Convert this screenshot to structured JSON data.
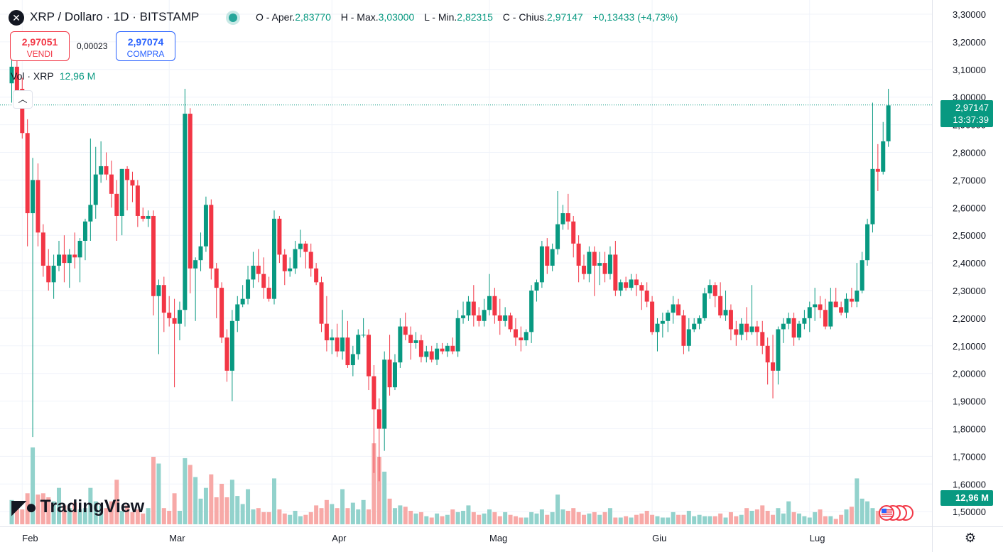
{
  "header": {
    "symbol_icon": "x-icon",
    "title": "XRP / Dollaro · 1D · BITSTAMP",
    "ohlc": {
      "open_label": "O - Aper.",
      "open": "2,83770",
      "high_label": "H - Max.",
      "high": "3,03000",
      "low_label": "L - Min.",
      "low": "2,82315",
      "close_label": "C - Chius.",
      "close": "2,97147",
      "change": "+0,13433 (+4,73%)"
    }
  },
  "trade": {
    "sell_price": "2,97051",
    "sell_label": "VENDI",
    "spread": "0,00023",
    "buy_price": "2,97074",
    "buy_label": "COMPRA"
  },
  "volume_legend": {
    "label": "Vol · XRP",
    "value": "12,96 M"
  },
  "price_tag": {
    "price": "2,97147",
    "countdown": "13:37:39"
  },
  "volume_tag": "12,96 M",
  "logo": {
    "text": "TradingView"
  },
  "colors": {
    "up": "#089981",
    "down": "#f23645",
    "up_vol": "#92d2cc",
    "down_vol": "#f7a9a7",
    "grid": "#f0f3fa"
  },
  "chart_data": {
    "type": "candlestick",
    "ylim": [
      1.45,
      3.32
    ],
    "y_ticks": [
      "3,30000",
      "3,20000",
      "3,10000",
      "3,00000",
      "2,90000",
      "2,80000",
      "2,70000",
      "2,60000",
      "2,50000",
      "2,40000",
      "2,30000",
      "2,20000",
      "2,10000",
      "2,00000",
      "1,90000",
      "1,80000",
      "1,70000",
      "1,60000",
      "1,50000"
    ],
    "x_tick_labels": [
      {
        "label": "Feb",
        "index": 2
      },
      {
        "label": "Mar",
        "index": 30
      },
      {
        "label": "Apr",
        "index": 61
      },
      {
        "label": "Mag",
        "index": 91
      },
      {
        "label": "Giu",
        "index": 122
      },
      {
        "label": "Lug",
        "index": 152
      }
    ],
    "current_price": 2.97147,
    "candles": [
      [
        3.05,
        3.14,
        2.98,
        3.11
      ],
      [
        3.11,
        3.15,
        2.98,
        3.02
      ],
      [
        3.03,
        3.07,
        2.85,
        2.87
      ],
      [
        2.87,
        2.92,
        2.46,
        2.58
      ],
      [
        2.58,
        2.78,
        1.77,
        2.7
      ],
      [
        2.7,
        2.76,
        2.46,
        2.51
      ],
      [
        2.51,
        2.54,
        2.35,
        2.39
      ],
      [
        2.39,
        2.45,
        2.3,
        2.33
      ],
      [
        2.33,
        2.43,
        2.27,
        2.39
      ],
      [
        2.39,
        2.48,
        2.37,
        2.43
      ],
      [
        2.43,
        2.5,
        2.33,
        2.4
      ],
      [
        2.4,
        2.45,
        2.31,
        2.43
      ],
      [
        2.43,
        2.51,
        2.38,
        2.42
      ],
      [
        2.42,
        2.49,
        2.33,
        2.48
      ],
      [
        2.48,
        2.56,
        2.41,
        2.55
      ],
      [
        2.55,
        2.85,
        2.48,
        2.61
      ],
      [
        2.61,
        2.82,
        2.56,
        2.72
      ],
      [
        2.72,
        2.84,
        2.69,
        2.75
      ],
      [
        2.75,
        2.8,
        2.7,
        2.72
      ],
      [
        2.72,
        2.77,
        2.6,
        2.65
      ],
      [
        2.65,
        2.7,
        2.48,
        2.57
      ],
      [
        2.57,
        2.74,
        2.5,
        2.74
      ],
      [
        2.74,
        2.75,
        2.59,
        2.7
      ],
      [
        2.7,
        2.73,
        2.62,
        2.68
      ],
      [
        2.68,
        2.7,
        2.53,
        2.57
      ],
      [
        2.57,
        2.6,
        2.55,
        2.56
      ],
      [
        2.56,
        2.59,
        2.53,
        2.57
      ],
      [
        2.57,
        2.59,
        2.21,
        2.28
      ],
      [
        2.28,
        2.34,
        2.07,
        2.32
      ],
      [
        2.32,
        2.35,
        2.15,
        2.22
      ],
      [
        2.22,
        2.28,
        2.17,
        2.2
      ],
      [
        2.2,
        2.27,
        1.95,
        2.18
      ],
      [
        2.18,
        2.26,
        2.12,
        2.23
      ],
      [
        2.23,
        3.03,
        2.17,
        2.94
      ],
      [
        2.94,
        2.96,
        2.29,
        2.38
      ],
      [
        2.38,
        2.42,
        2.19,
        2.41
      ],
      [
        2.41,
        2.51,
        2.37,
        2.46
      ],
      [
        2.46,
        2.64,
        2.44,
        2.61
      ],
      [
        2.61,
        2.63,
        2.34,
        2.38
      ],
      [
        2.38,
        2.4,
        2.2,
        2.31
      ],
      [
        2.31,
        2.33,
        2.11,
        2.13
      ],
      [
        2.13,
        2.16,
        1.97,
        2.01
      ],
      [
        2.01,
        2.23,
        1.9,
        2.19
      ],
      [
        2.19,
        2.28,
        2.15,
        2.25
      ],
      [
        2.25,
        2.32,
        2.24,
        2.27
      ],
      [
        2.27,
        2.39,
        2.25,
        2.34
      ],
      [
        2.34,
        2.44,
        2.31,
        2.39
      ],
      [
        2.39,
        2.45,
        2.33,
        2.36
      ],
      [
        2.36,
        2.42,
        2.27,
        2.31
      ],
      [
        2.31,
        2.35,
        2.26,
        2.27
      ],
      [
        2.27,
        2.59,
        2.25,
        2.56
      ],
      [
        2.56,
        2.57,
        2.4,
        2.43
      ],
      [
        2.43,
        2.45,
        2.32,
        2.37
      ],
      [
        2.37,
        2.42,
        2.35,
        2.38
      ],
      [
        2.38,
        2.48,
        2.36,
        2.45
      ],
      [
        2.45,
        2.52,
        2.42,
        2.47
      ],
      [
        2.47,
        2.48,
        2.38,
        2.44
      ],
      [
        2.44,
        2.47,
        2.35,
        2.38
      ],
      [
        2.38,
        2.4,
        2.32,
        2.33
      ],
      [
        2.33,
        2.35,
        2.15,
        2.18
      ],
      [
        2.18,
        2.28,
        2.08,
        2.12
      ],
      [
        2.12,
        2.16,
        2.07,
        2.13
      ],
      [
        2.13,
        2.18,
        2.06,
        2.08
      ],
      [
        2.08,
        2.23,
        2.05,
        2.13
      ],
      [
        2.13,
        2.19,
        2.02,
        2.03
      ],
      [
        2.03,
        2.1,
        1.99,
        2.07
      ],
      [
        2.07,
        2.16,
        2.05,
        2.14
      ],
      [
        2.14,
        2.2,
        2.13,
        2.14
      ],
      [
        2.14,
        2.16,
        1.94,
        1.99
      ],
      [
        1.99,
        2.03,
        1.64,
        1.87
      ],
      [
        1.87,
        1.91,
        1.61,
        1.8
      ],
      [
        1.8,
        2.08,
        1.72,
        2.05
      ],
      [
        2.05,
        2.14,
        1.92,
        1.95
      ],
      [
        1.95,
        2.07,
        1.94,
        2.04
      ],
      [
        2.04,
        2.2,
        2.02,
        2.17
      ],
      [
        2.17,
        2.22,
        2.12,
        2.14
      ],
      [
        2.14,
        2.17,
        2.05,
        2.11
      ],
      [
        2.11,
        2.15,
        2.09,
        2.12
      ],
      [
        2.12,
        2.14,
        2.04,
        2.06
      ],
      [
        2.06,
        2.1,
        2.04,
        2.08
      ],
      [
        2.08,
        2.1,
        2.04,
        2.05
      ],
      [
        2.05,
        2.11,
        2.03,
        2.09
      ],
      [
        2.09,
        2.11,
        2.07,
        2.08
      ],
      [
        2.08,
        2.11,
        2.06,
        2.1
      ],
      [
        2.1,
        2.13,
        2.07,
        2.08
      ],
      [
        2.08,
        2.23,
        2.06,
        2.2
      ],
      [
        2.2,
        2.26,
        2.18,
        2.21
      ],
      [
        2.21,
        2.28,
        2.19,
        2.26
      ],
      [
        2.26,
        2.32,
        2.17,
        2.21
      ],
      [
        2.21,
        2.24,
        2.17,
        2.19
      ],
      [
        2.19,
        2.27,
        2.17,
        2.23
      ],
      [
        2.23,
        2.36,
        2.21,
        2.28
      ],
      [
        2.28,
        2.31,
        2.18,
        2.21
      ],
      [
        2.21,
        2.27,
        2.14,
        2.19
      ],
      [
        2.19,
        2.24,
        2.17,
        2.21
      ],
      [
        2.21,
        2.22,
        2.15,
        2.16
      ],
      [
        2.16,
        2.2,
        2.1,
        2.13
      ],
      [
        2.13,
        2.17,
        2.08,
        2.12
      ],
      [
        2.12,
        2.16,
        2.1,
        2.15
      ],
      [
        2.15,
        2.32,
        2.11,
        2.3
      ],
      [
        2.3,
        2.34,
        2.26,
        2.33
      ],
      [
        2.33,
        2.48,
        2.31,
        2.46
      ],
      [
        2.46,
        2.49,
        2.36,
        2.39
      ],
      [
        2.39,
        2.47,
        2.37,
        2.45
      ],
      [
        2.45,
        2.66,
        2.43,
        2.54
      ],
      [
        2.54,
        2.61,
        2.52,
        2.58
      ],
      [
        2.58,
        2.65,
        2.52,
        2.55
      ],
      [
        2.55,
        2.57,
        2.42,
        2.47
      ],
      [
        2.47,
        2.5,
        2.33,
        2.39
      ],
      [
        2.39,
        2.43,
        2.34,
        2.36
      ],
      [
        2.36,
        2.46,
        2.33,
        2.44
      ],
      [
        2.44,
        2.46,
        2.28,
        2.39
      ],
      [
        2.39,
        2.44,
        2.32,
        2.4
      ],
      [
        2.4,
        2.44,
        2.33,
        2.36
      ],
      [
        2.36,
        2.46,
        2.34,
        2.43
      ],
      [
        2.43,
        2.48,
        2.28,
        2.3
      ],
      [
        2.3,
        2.34,
        2.28,
        2.33
      ],
      [
        2.33,
        2.35,
        2.3,
        2.31
      ],
      [
        2.31,
        2.36,
        2.3,
        2.34
      ],
      [
        2.34,
        2.36,
        2.28,
        2.32
      ],
      [
        2.32,
        2.33,
        2.23,
        2.3
      ],
      [
        2.3,
        2.33,
        2.24,
        2.26
      ],
      [
        2.26,
        2.28,
        2.14,
        2.15
      ],
      [
        2.15,
        2.2,
        2.08,
        2.18
      ],
      [
        2.18,
        2.22,
        2.13,
        2.19
      ],
      [
        2.19,
        2.23,
        2.15,
        2.22
      ],
      [
        2.22,
        2.28,
        2.18,
        2.25
      ],
      [
        2.25,
        2.27,
        2.21,
        2.21
      ],
      [
        2.21,
        2.23,
        2.07,
        2.1
      ],
      [
        2.1,
        2.2,
        2.08,
        2.16
      ],
      [
        2.16,
        2.2,
        2.15,
        2.18
      ],
      [
        2.18,
        2.21,
        2.16,
        2.2
      ],
      [
        2.2,
        2.31,
        2.19,
        2.29
      ],
      [
        2.29,
        2.34,
        2.27,
        2.32
      ],
      [
        2.32,
        2.33,
        2.24,
        2.28
      ],
      [
        2.28,
        2.33,
        2.2,
        2.21
      ],
      [
        2.21,
        2.3,
        2.19,
        2.23
      ],
      [
        2.23,
        2.25,
        2.12,
        2.16
      ],
      [
        2.16,
        2.19,
        2.1,
        2.14
      ],
      [
        2.14,
        2.2,
        2.12,
        2.18
      ],
      [
        2.18,
        2.24,
        2.12,
        2.15
      ],
      [
        2.15,
        2.32,
        2.14,
        2.17
      ],
      [
        2.17,
        2.19,
        2.1,
        2.15
      ],
      [
        2.15,
        2.19,
        2.07,
        2.1
      ],
      [
        2.1,
        2.13,
        1.96,
        2.04
      ],
      [
        2.04,
        2.14,
        1.91,
        2.01
      ],
      [
        2.01,
        2.17,
        1.96,
        2.16
      ],
      [
        2.16,
        2.2,
        2.11,
        2.18
      ],
      [
        2.18,
        2.22,
        2.16,
        2.2
      ],
      [
        2.2,
        2.22,
        2.1,
        2.13
      ],
      [
        2.13,
        2.19,
        2.12,
        2.18
      ],
      [
        2.18,
        2.23,
        2.16,
        2.2
      ],
      [
        2.2,
        2.26,
        2.15,
        2.24
      ],
      [
        2.24,
        2.31,
        2.19,
        2.25
      ],
      [
        2.25,
        2.28,
        2.2,
        2.23
      ],
      [
        2.23,
        2.27,
        2.16,
        2.17
      ],
      [
        2.17,
        2.31,
        2.16,
        2.26
      ],
      [
        2.26,
        2.31,
        2.24,
        2.24
      ],
      [
        2.24,
        2.26,
        2.21,
        2.22
      ],
      [
        2.22,
        2.29,
        2.2,
        2.27
      ],
      [
        2.27,
        2.31,
        2.24,
        2.26
      ],
      [
        2.26,
        2.4,
        2.24,
        2.3
      ],
      [
        2.3,
        2.44,
        2.29,
        2.41
      ],
      [
        2.41,
        2.56,
        2.39,
        2.54
      ],
      [
        2.54,
        2.98,
        2.51,
        2.74
      ],
      [
        2.74,
        2.83,
        2.66,
        2.73
      ],
      [
        2.73,
        2.91,
        2.72,
        2.84
      ],
      [
        2.84,
        3.03,
        2.82,
        2.97
      ]
    ],
    "volume_label": "Vol · XRP",
    "volume_current": "12,96 M",
    "volume_max_ratio_note": "relative volumes",
    "volume": [
      0.18,
      0.12,
      0.11,
      0.23,
      0.57,
      0.22,
      0.23,
      0.2,
      0.17,
      0.27,
      0.14,
      0.12,
      0.16,
      0.11,
      0.12,
      0.27,
      0.17,
      0.14,
      0.12,
      0.17,
      0.33,
      0.1,
      0.14,
      0.09,
      0.11,
      0.08,
      0.12,
      0.5,
      0.45,
      0.12,
      0.1,
      0.23,
      0.1,
      0.49,
      0.44,
      0.35,
      0.19,
      0.27,
      0.37,
      0.2,
      0.3,
      0.2,
      0.33,
      0.21,
      0.15,
      0.26,
      0.11,
      0.12,
      0.09,
      0.09,
      0.34,
      0.11,
      0.08,
      0.07,
      0.1,
      0.06,
      0.07,
      0.09,
      0.14,
      0.12,
      0.18,
      0.15,
      0.12,
      0.26,
      0.12,
      0.16,
      0.11,
      0.18,
      0.11,
      0.6,
      0.5,
      0.39,
      0.19,
      0.12,
      0.14,
      0.13,
      0.1,
      0.08,
      0.09,
      0.06,
      0.05,
      0.08,
      0.06,
      0.07,
      0.11,
      0.09,
      0.1,
      0.14,
      0.09,
      0.07,
      0.08,
      0.11,
      0.09,
      0.06,
      0.09,
      0.07,
      0.06,
      0.05,
      0.05,
      0.09,
      0.08,
      0.11,
      0.07,
      0.09,
      0.22,
      0.11,
      0.1,
      0.12,
      0.09,
      0.07,
      0.08,
      0.09,
      0.07,
      0.09,
      0.12,
      0.05,
      0.05,
      0.06,
      0.05,
      0.07,
      0.08,
      0.1,
      0.07,
      0.06,
      0.05,
      0.05,
      0.09,
      0.07,
      0.07,
      0.1,
      0.06,
      0.07,
      0.06,
      0.06,
      0.06,
      0.08,
      0.05,
      0.09,
      0.06,
      0.07,
      0.12,
      0.1,
      0.11,
      0.14,
      0.1,
      0.07,
      0.12,
      0.08,
      0.17,
      0.09,
      0.08,
      0.06,
      0.05,
      0.09,
      0.11,
      0.06,
      0.06,
      0.04,
      0.07,
      0.11,
      0.13,
      0.34,
      0.19,
      0.17,
      0.12,
      0.1
    ]
  }
}
